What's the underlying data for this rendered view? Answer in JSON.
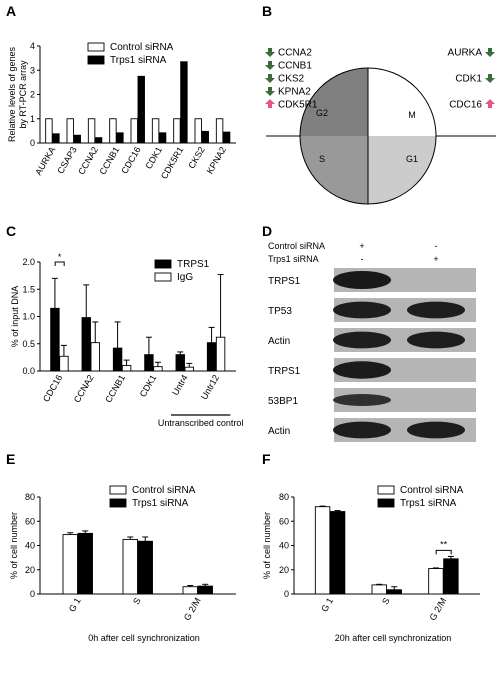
{
  "panels": {
    "A": {
      "label": "A"
    },
    "B": {
      "label": "B"
    },
    "C": {
      "label": "C"
    },
    "D": {
      "label": "D"
    },
    "E": {
      "label": "E"
    },
    "F": {
      "label": "F"
    }
  },
  "colors": {
    "control": "#ffffff",
    "treated": "#000000",
    "g2": "#808080",
    "s": "#999999",
    "g1": "#cccccc",
    "m": "#ffffff",
    "down": "#3a6b3a",
    "up": "#e8557f"
  },
  "chart_data": [
    {
      "id": "A",
      "type": "bar",
      "ylabel": "Relative levels of genes by RT-PCR array",
      "ylim": [
        0,
        4
      ],
      "yticks": [
        0,
        1,
        2,
        3,
        4
      ],
      "categories": [
        "AURKA",
        "CSAP3",
        "CCNA2",
        "CCNB1",
        "CDC16",
        "CDK1",
        "CDK5R1",
        "CKS2",
        "KPNA2"
      ],
      "series": [
        {
          "name": "Control siRNA",
          "values": [
            1,
            1,
            1,
            1,
            1,
            1,
            1,
            1,
            1
          ]
        },
        {
          "name": "Trps1 siRNA",
          "values": [
            0.38,
            0.32,
            0.22,
            0.42,
            2.75,
            0.42,
            3.35,
            0.48,
            0.45
          ]
        }
      ]
    },
    {
      "id": "C",
      "type": "bar",
      "ylabel": "% of input DNA",
      "ylim": [
        0,
        2.0
      ],
      "yticks": [
        "0.0",
        "0.5",
        "1.0",
        "1.5",
        "2.0"
      ],
      "categories": [
        "CDC16",
        "CCNA2",
        "CCNB1",
        "CDK1",
        "Untr4",
        "Untr12"
      ],
      "series": [
        {
          "name": "TRPS1",
          "values": [
            1.15,
            0.98,
            0.42,
            0.3,
            0.3,
            0.52
          ],
          "errors": [
            0.55,
            0.6,
            0.48,
            0.32,
            0.05,
            0.28
          ]
        },
        {
          "name": "IgG",
          "values": [
            0.27,
            0.52,
            0.1,
            0.08,
            0.07,
            0.62
          ],
          "errors": [
            0.2,
            0.38,
            0.1,
            0.08,
            0.07,
            1.15
          ]
        }
      ],
      "significance": {
        "label": "*",
        "between": "CDC16"
      },
      "group_label": "Untranscribed control"
    },
    {
      "id": "E",
      "type": "bar",
      "ylabel": "% of cell number",
      "xlabel": "0h after cell synchronization",
      "ylim": [
        0,
        80
      ],
      "yticks": [
        0,
        20,
        40,
        60,
        80
      ],
      "categories": [
        "G 1",
        "S",
        "G 2/M"
      ],
      "series": [
        {
          "name": "Control siRNA",
          "values": [
            49,
            45,
            6
          ],
          "errors": [
            1.5,
            2,
            1
          ]
        },
        {
          "name": "Trps1 siRNA",
          "values": [
            50,
            43.5,
            6.5
          ],
          "errors": [
            2,
            3.5,
            1.5
          ]
        }
      ]
    },
    {
      "id": "F",
      "type": "bar",
      "ylabel": "% of cell number",
      "xlabel": "20h after cell synchronization",
      "ylim": [
        0,
        80
      ],
      "yticks": [
        0,
        20,
        40,
        60,
        80
      ],
      "categories": [
        "G 1",
        "S",
        "G 2/M"
      ],
      "series": [
        {
          "name": "Control siRNA",
          "values": [
            72,
            7.5,
            21
          ],
          "errors": [
            0.5,
            0.5,
            0.5
          ]
        },
        {
          "name": "Trps1 siRNA",
          "values": [
            68,
            3.5,
            29
          ],
          "errors": [
            0.8,
            2.5,
            2
          ]
        }
      ],
      "significance": {
        "label": "**",
        "between": "G 2/M"
      }
    }
  ],
  "cell_cycle": {
    "phases": {
      "g2": "G2",
      "m": "M",
      "s": "S",
      "g1": "G1"
    },
    "left_genes": [
      {
        "name": "CCNA2",
        "dir": "down"
      },
      {
        "name": "CCNB1",
        "dir": "down"
      },
      {
        "name": "CKS2",
        "dir": "down"
      },
      {
        "name": "KPNA2",
        "dir": "down"
      },
      {
        "name": "CDK5R1",
        "dir": "up"
      }
    ],
    "right_genes": [
      {
        "name": "AURKA",
        "dir": "down"
      },
      {
        "name": "CDK1",
        "dir": "down"
      },
      {
        "name": "CDC16",
        "dir": "up"
      }
    ]
  },
  "western": {
    "conditions": [
      {
        "label": "Control siRNA",
        "lanes": [
          "+",
          "-"
        ]
      },
      {
        "label": "Trps1 siRNA",
        "lanes": [
          "-",
          "+"
        ]
      }
    ],
    "bands": [
      {
        "label": "TRPS1",
        "lane1": 1.0,
        "lane2": 0.0
      },
      {
        "label": "TP53",
        "lane1": 0.9,
        "lane2": 0.9
      },
      {
        "label": "Actin",
        "lane1": 0.9,
        "lane2": 0.9
      },
      {
        "label": "TRPS1",
        "lane1": 0.95,
        "lane2": 0.0
      },
      {
        "label": "53BP1",
        "lane1": 0.5,
        "lane2": 0.0
      },
      {
        "label": "Actin",
        "lane1": 0.9,
        "lane2": 0.9
      }
    ]
  }
}
